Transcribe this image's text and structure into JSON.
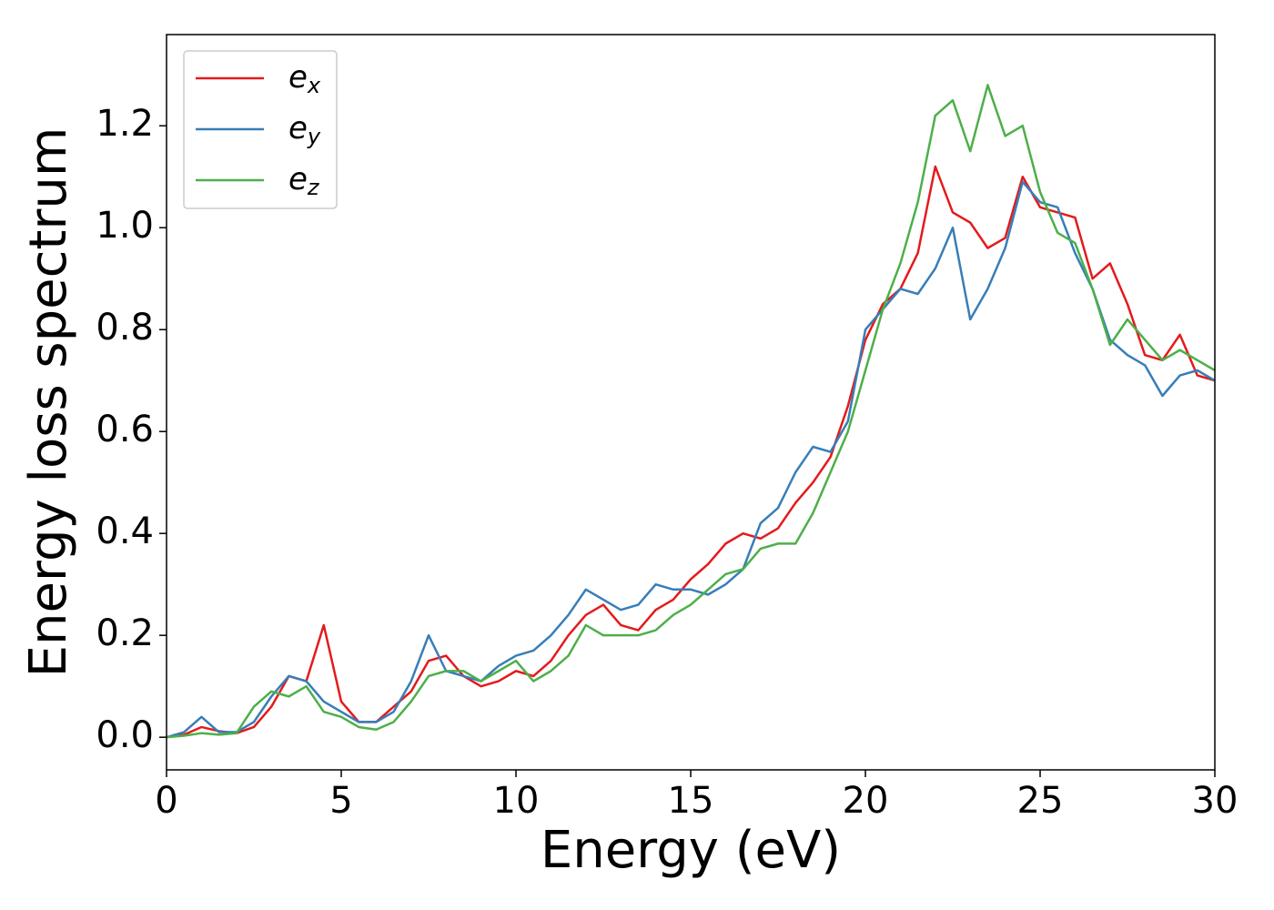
{
  "chart_data": {
    "type": "line",
    "xlabel": "Energy (eV)",
    "ylabel": "Energy loss spectrum",
    "x": [
      0,
      0.5,
      1,
      1.5,
      2,
      2.5,
      3,
      3.5,
      4,
      4.5,
      5,
      5.5,
      6,
      6.5,
      7,
      7.5,
      8,
      8.5,
      9,
      9.5,
      10,
      10.5,
      11,
      11.5,
      12,
      12.5,
      13,
      13.5,
      14,
      14.5,
      15,
      15.5,
      16,
      16.5,
      17,
      17.5,
      18,
      18.5,
      19,
      19.5,
      20,
      20.5,
      21,
      21.5,
      22,
      22.5,
      23,
      23.5,
      24,
      24.5,
      25,
      25.5,
      26,
      26.5,
      27,
      27.5,
      28,
      28.5,
      29,
      29.5,
      30
    ],
    "series": [
      {
        "name": "ex",
        "color": "#e41a1c",
        "values": [
          0,
          0.005,
          0.02,
          0.012,
          0.008,
          0.02,
          0.06,
          0.12,
          0.11,
          0.22,
          0.07,
          0.03,
          0.03,
          0.06,
          0.09,
          0.15,
          0.16,
          0.12,
          0.1,
          0.11,
          0.13,
          0.12,
          0.15,
          0.2,
          0.24,
          0.26,
          0.22,
          0.21,
          0.25,
          0.27,
          0.31,
          0.34,
          0.38,
          0.4,
          0.39,
          0.41,
          0.46,
          0.5,
          0.55,
          0.65,
          0.78,
          0.85,
          0.88,
          0.95,
          1.12,
          1.03,
          1.01,
          0.96,
          0.98,
          1.1,
          1.04,
          1.03,
          1.02,
          0.9,
          0.93,
          0.85,
          0.75,
          0.74,
          0.79,
          0.71,
          0.7
        ]
      },
      {
        "name": "ey",
        "color": "#377eb8",
        "values": [
          0,
          0.01,
          0.04,
          0.01,
          0.01,
          0.03,
          0.08,
          0.12,
          0.11,
          0.07,
          0.05,
          0.03,
          0.03,
          0.05,
          0.11,
          0.2,
          0.13,
          0.12,
          0.11,
          0.14,
          0.16,
          0.17,
          0.2,
          0.24,
          0.29,
          0.27,
          0.25,
          0.26,
          0.3,
          0.29,
          0.29,
          0.28,
          0.3,
          0.33,
          0.42,
          0.45,
          0.52,
          0.57,
          0.56,
          0.62,
          0.8,
          0.84,
          0.88,
          0.87,
          0.92,
          1.0,
          0.82,
          0.88,
          0.96,
          1.09,
          1.05,
          1.04,
          0.95,
          0.88,
          0.78,
          0.75,
          0.73,
          0.67,
          0.71,
          0.72,
          0.7
        ]
      },
      {
        "name": "ez",
        "color": "#4daf4a",
        "values": [
          0,
          0.003,
          0.008,
          0.005,
          0.008,
          0.06,
          0.09,
          0.08,
          0.1,
          0.05,
          0.04,
          0.02,
          0.015,
          0.03,
          0.07,
          0.12,
          0.13,
          0.13,
          0.11,
          0.13,
          0.15,
          0.11,
          0.13,
          0.16,
          0.22,
          0.2,
          0.2,
          0.2,
          0.21,
          0.24,
          0.26,
          0.29,
          0.32,
          0.33,
          0.37,
          0.38,
          0.38,
          0.44,
          0.52,
          0.6,
          0.72,
          0.84,
          0.93,
          1.05,
          1.22,
          1.25,
          1.15,
          1.28,
          1.18,
          1.2,
          1.07,
          0.99,
          0.97,
          0.88,
          0.77,
          0.82,
          0.78,
          0.74,
          0.76,
          0.74,
          0.72
        ]
      }
    ],
    "xlim": [
      0,
      30
    ],
    "xticks": [
      0,
      5,
      10,
      15,
      20,
      25,
      30
    ],
    "ylim": [
      -0.064,
      1.379
    ],
    "yticks": [
      {
        "value": 0,
        "label": "0.0"
      },
      {
        "value": 0.2,
        "label": "0.2"
      },
      {
        "value": 0.4,
        "label": "0.4"
      },
      {
        "value": 0.6,
        "label": "0.6"
      },
      {
        "value": 0.8,
        "label": "0.8"
      },
      {
        "value": 1.0,
        "label": "1.0"
      },
      {
        "value": 1.2,
        "label": "1.2"
      }
    ],
    "legend": "upper left"
  }
}
